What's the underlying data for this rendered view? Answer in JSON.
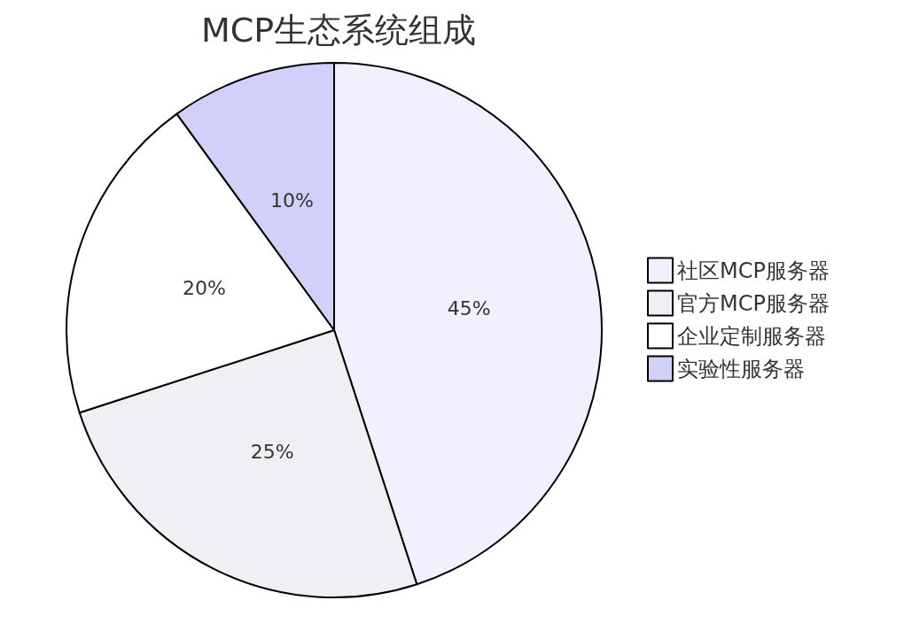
{
  "chart_data": {
    "type": "pie",
    "title": "MCP生态系统组成",
    "categories": [
      "社区MCP服务器",
      "官方MCP服务器",
      "企业定制服务器",
      "实验性服务器"
    ],
    "values": [
      45,
      25,
      20,
      10
    ],
    "value_labels": [
      "45%",
      "25%",
      "20%",
      "10%"
    ],
    "colors": [
      "#f0f0ff",
      "#f0f0f4",
      "#ffffff",
      "#d0d0fa"
    ],
    "legend": "right"
  }
}
